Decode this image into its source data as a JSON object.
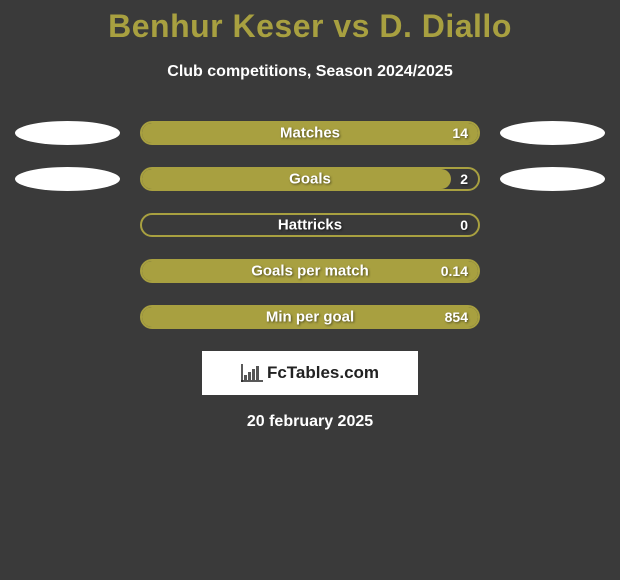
{
  "title": "Benhur Keser vs D. Diallo",
  "title_color": "#a8a040",
  "subtitle": "Club competitions, Season 2024/2025",
  "background_color": "#3a3a3a",
  "text_color": "#ffffff",
  "stats": [
    {
      "label": "Matches",
      "value": "14",
      "fill_pct": 100,
      "bar_color": "#a8a040",
      "border_color": "#a8a040",
      "left_ellipse": true,
      "right_ellipse": true
    },
    {
      "label": "Goals",
      "value": "2",
      "fill_pct": 92,
      "bar_color": "#a8a040",
      "border_color": "#a8a040",
      "left_ellipse": true,
      "right_ellipse": true
    },
    {
      "label": "Hattricks",
      "value": "0",
      "fill_pct": 0,
      "bar_color": "#a8a040",
      "border_color": "#a8a040",
      "left_ellipse": false,
      "right_ellipse": false
    },
    {
      "label": "Goals per match",
      "value": "0.14",
      "fill_pct": 100,
      "bar_color": "#a8a040",
      "border_color": "#a8a040",
      "left_ellipse": false,
      "right_ellipse": false
    },
    {
      "label": "Min per goal",
      "value": "854",
      "fill_pct": 100,
      "bar_color": "#a8a040",
      "border_color": "#a8a040",
      "left_ellipse": false,
      "right_ellipse": false
    }
  ],
  "logo": {
    "text": "FcTables.com",
    "box_bg": "#ffffff",
    "text_color": "#222222",
    "bar_colors": [
      "#555",
      "#555",
      "#555",
      "#555",
      "#555"
    ]
  },
  "date": "20 february 2025",
  "ellipse_color": "#ffffff",
  "bar": {
    "track_width": 340,
    "track_height": 24,
    "radius": 12
  }
}
